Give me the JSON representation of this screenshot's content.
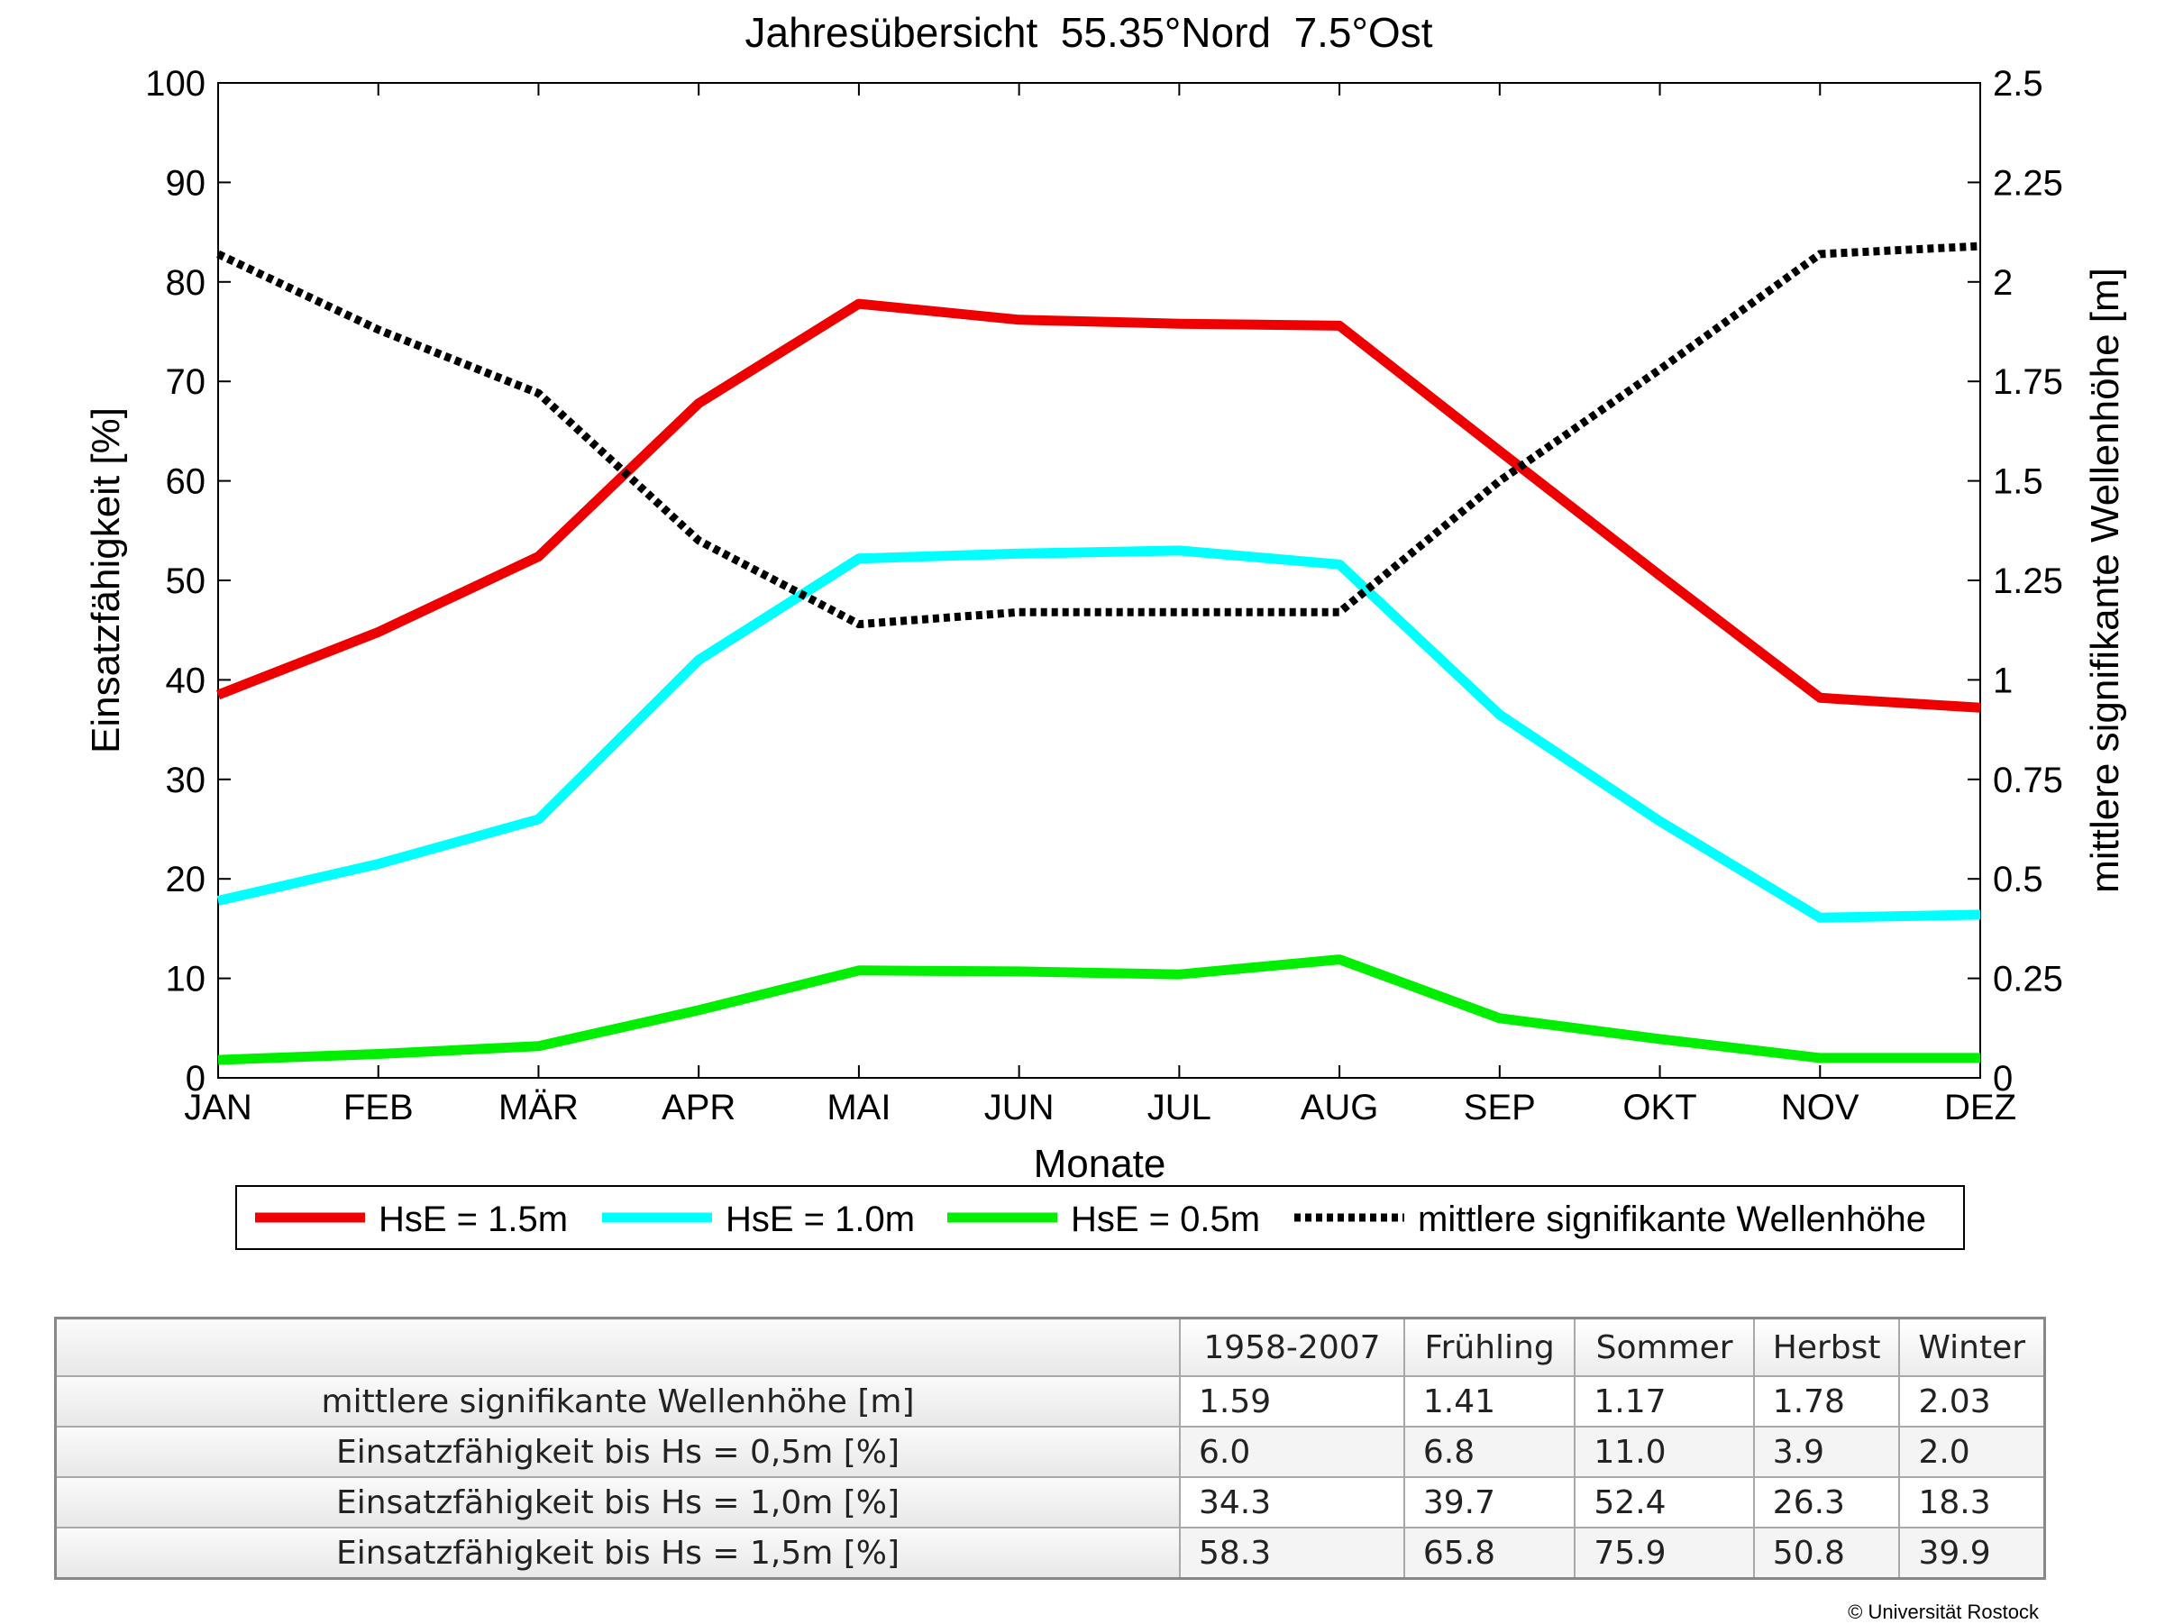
{
  "chart_data": {
    "type": "line",
    "title": "Jahresübersicht  55.35°Nord  7.5°Ost",
    "xlabel": "Monate",
    "ylabel_left": "Einsatzfähigkeit [%]",
    "ylabel_right": "mittlere signifikante Wellenhöhe [m]",
    "categories": [
      "JAN",
      "FEB",
      "MÄR",
      "APR",
      "MAI",
      "JUN",
      "JUL",
      "AUG",
      "SEP",
      "OKT",
      "NOV",
      "DEZ"
    ],
    "ylim_left": [
      0,
      100
    ],
    "yticks_left": [
      "0",
      "10",
      "20",
      "30",
      "40",
      "50",
      "60",
      "70",
      "80",
      "90",
      "100"
    ],
    "ylim_right": [
      0,
      2.5
    ],
    "yticks_right": [
      "0",
      "0.25",
      "0.5",
      "0.75",
      "1",
      "1.25",
      "1.5",
      "1.75",
      "2",
      "2.25",
      "2.5"
    ],
    "grid": false,
    "legend_position": "bottom",
    "series": [
      {
        "name": "HsE = 1.5m",
        "axis": "left",
        "color": "#ee0000",
        "style": "solid",
        "values": [
          38.5,
          44.8,
          52.4,
          67.8,
          77.8,
          76.2,
          75.8,
          75.6,
          63.0,
          50.5,
          38.2,
          37.2
        ]
      },
      {
        "name": "HsE = 1.0m",
        "axis": "left",
        "color": "#00ffff",
        "style": "solid",
        "values": [
          17.8,
          21.5,
          26.0,
          42.0,
          52.2,
          52.7,
          53.0,
          51.6,
          36.5,
          25.8,
          16.1,
          16.4
        ]
      },
      {
        "name": "HsE = 0.5m",
        "axis": "left",
        "color": "#00ee00",
        "style": "solid",
        "values": [
          1.8,
          2.4,
          3.2,
          6.8,
          10.8,
          10.7,
          10.4,
          11.9,
          6.0,
          3.9,
          2.0,
          2.0
        ]
      },
      {
        "name": "mittlere signifikante Wellenhöhe",
        "axis": "right",
        "color": "#000000",
        "style": "dotted",
        "values": [
          2.07,
          1.88,
          1.72,
          1.35,
          1.14,
          1.17,
          1.17,
          1.17,
          1.5,
          1.78,
          2.07,
          2.09
        ]
      }
    ]
  },
  "table": {
    "headers": [
      "1958-2007",
      "Frühling",
      "Sommer",
      "Herbst",
      "Winter"
    ],
    "rows": [
      {
        "label": "mittlere signifikante Wellenhöhe [m]",
        "values": [
          "1.59",
          "1.41",
          "1.17",
          "1.78",
          "2.03"
        ]
      },
      {
        "label": "Einsatzfähigkeit bis Hs = 0,5m [%]",
        "values": [
          "6.0",
          "6.8",
          "11.0",
          "3.9",
          "2.0"
        ]
      },
      {
        "label": "Einsatzfähigkeit bis Hs = 1,0m [%]",
        "values": [
          "34.3",
          "39.7",
          "52.4",
          "26.3",
          "18.3"
        ]
      },
      {
        "label": "Einsatzfähigkeit bis Hs = 1,5m [%]",
        "values": [
          "58.3",
          "65.8",
          "75.9",
          "50.8",
          "39.9"
        ]
      }
    ]
  },
  "copyright": "© Universität Rostock"
}
